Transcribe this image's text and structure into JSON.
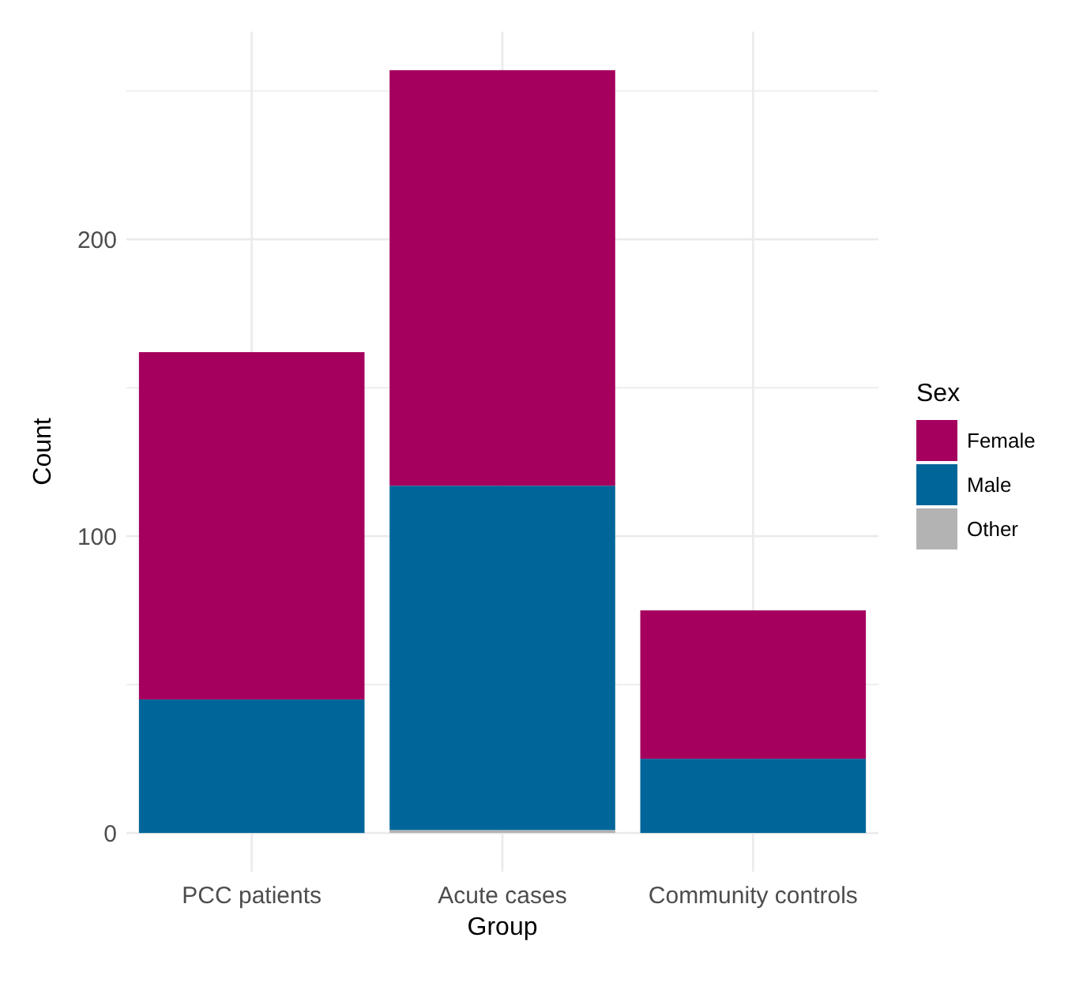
{
  "chart_data": {
    "type": "bar",
    "xlabel": "Group",
    "ylabel": "Count",
    "legend_title": "Sex",
    "categories": [
      "PCC patients",
      "Acute cases",
      "Community controls"
    ],
    "stacked": true,
    "series": [
      {
        "name": "Other",
        "color": "#b3b3b3",
        "values": [
          0,
          1,
          0
        ]
      },
      {
        "name": "Male",
        "color": "#006699",
        "values": [
          45,
          116,
          25
        ]
      },
      {
        "name": "Female",
        "color": "#a5005e",
        "values": [
          117,
          140,
          50
        ]
      }
    ],
    "ylim": [
      -13,
      270
    ],
    "yticks": [
      0,
      {
        "value": 50,
        "label": null
      },
      100,
      {
        "value": 150,
        "label": null
      },
      200,
      {
        "value": 250,
        "label": null
      }
    ],
    "grid": true,
    "legend": "right"
  }
}
